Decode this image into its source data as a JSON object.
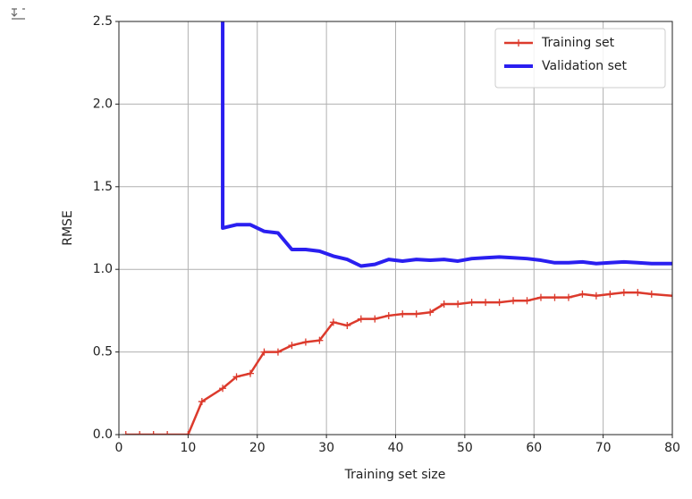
{
  "chart_data": {
    "type": "line",
    "xlabel": "Training set size",
    "ylabel": "RMSE",
    "xlim": [
      0,
      80
    ],
    "ylim": [
      0,
      2.5
    ],
    "xticks": [
      0,
      10,
      20,
      30,
      40,
      50,
      60,
      70,
      80
    ],
    "yticks": [
      {
        "value": 0,
        "label": "0.0"
      },
      0.5,
      {
        "value": 1,
        "label": "1.0"
      },
      1.5,
      {
        "value": 2,
        "label": "2.0"
      },
      2.5
    ],
    "grid": true,
    "legend": "upper right",
    "series": [
      {
        "name": "Training set",
        "color": "#dc3a2c",
        "marker": "+",
        "x": [
          1,
          3,
          5,
          7,
          10,
          12,
          15,
          17,
          19,
          21,
          23,
          25,
          27,
          29,
          31,
          33,
          35,
          37,
          39,
          41,
          43,
          45,
          47,
          49,
          51,
          53,
          55,
          57,
          59,
          61,
          63,
          65,
          67,
          69,
          71,
          73,
          75,
          77,
          80
        ],
        "values": [
          0,
          0,
          0,
          0,
          0,
          0.2,
          0.28,
          0.35,
          0.37,
          0.5,
          0.5,
          0.54,
          0.56,
          0.57,
          0.68,
          0.66,
          0.7,
          0.7,
          0.72,
          0.73,
          0.73,
          0.74,
          0.79,
          0.79,
          0.8,
          0.8,
          0.8,
          0.81,
          0.81,
          0.83,
          0.83,
          0.83,
          0.85,
          0.84,
          0.85,
          0.86,
          0.86,
          0.85,
          0.84
        ]
      },
      {
        "name": "Validation set",
        "color": "#2a1ff0",
        "x": [
          15,
          15,
          17,
          19,
          21,
          23,
          25,
          27,
          29,
          31,
          33,
          35,
          37,
          39,
          41,
          43,
          45,
          47,
          49,
          51,
          53,
          55,
          57,
          59,
          61,
          63,
          65,
          67,
          69,
          71,
          73,
          75,
          77,
          80
        ],
        "values": [
          2.5,
          1.25,
          1.27,
          1.27,
          1.23,
          1.22,
          1.12,
          1.12,
          1.11,
          1.08,
          1.06,
          1.02,
          1.03,
          1.06,
          1.05,
          1.06,
          1.055,
          1.06,
          1.05,
          1.065,
          1.07,
          1.075,
          1.07,
          1.065,
          1.055,
          1.04,
          1.04,
          1.045,
          1.035,
          1.04,
          1.045,
          1.04,
          1.035,
          1.035
        ]
      }
    ]
  }
}
